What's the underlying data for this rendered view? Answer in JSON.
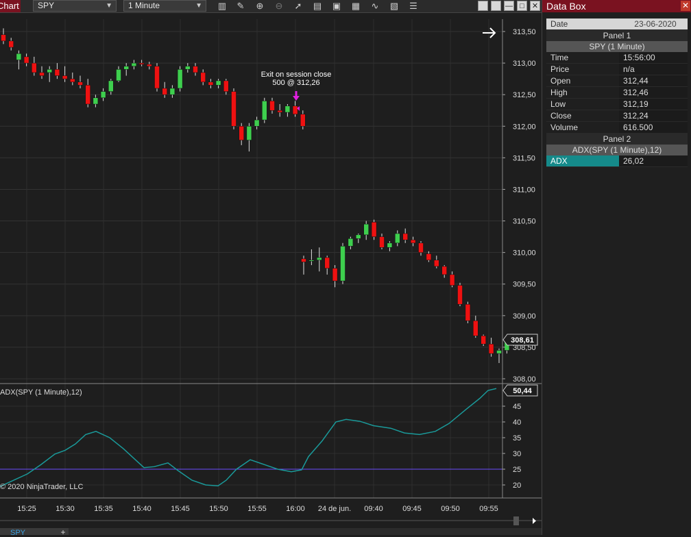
{
  "window": {
    "tab_title": "Chart"
  },
  "toolbar": {
    "instrument": "SPY",
    "interval": "1 Minute",
    "icons": [
      "chart-style-icon",
      "pencil-icon",
      "zoom-in-icon",
      "zoom-out-icon",
      "pointer-icon",
      "properties-icon",
      "templates-icon",
      "strategies-icon",
      "indicators-icon",
      "snapshot-icon",
      "data-box-icon"
    ]
  },
  "chart": {
    "price_axis_labels": [
      "313,50",
      "313,00",
      "312,50",
      "312,00",
      "311,50",
      "311,00",
      "310,50",
      "310,00",
      "309,50",
      "309,00",
      "308,50",
      "308,00"
    ],
    "time_axis_labels": [
      "15:25",
      "15:30",
      "15:35",
      "15:40",
      "15:45",
      "15:50",
      "15:55",
      "16:00",
      "24 de jun.",
      "09:40",
      "09:45",
      "09:50",
      "09:55"
    ],
    "last_price_badge": "308,61",
    "annotation_line1": "Exit on session close",
    "annotation_line2": "500 @ 312,26",
    "indicator_label": "ADX(SPY (1 Minute),12)",
    "indicator_badge": "50,44",
    "indicator_axis_labels": [
      "45",
      "40",
      "35",
      "30",
      "25",
      "20"
    ],
    "copyright": "© 2020 NinjaTrader, LLC",
    "colors": {
      "up": "#3ecf4e",
      "down": "#ee1111",
      "adx": "#1a9a9a",
      "level": "#6b4cff",
      "exit_marker": "#e020e0"
    }
  },
  "chart_data": {
    "type": "candlestick",
    "series": [
      {
        "name": "SPY (1 Minute)",
        "ohlc_session1": [
          [
            313.45,
            313.55,
            313.3,
            313.35
          ],
          [
            313.35,
            313.4,
            313.2,
            313.25
          ],
          [
            313.05,
            313.2,
            312.9,
            313.15
          ],
          [
            313.1,
            313.15,
            312.95,
            313.0
          ],
          [
            313.0,
            313.1,
            312.8,
            312.85
          ],
          [
            312.85,
            312.95,
            312.75,
            312.8
          ],
          [
            312.85,
            312.95,
            312.7,
            312.9
          ],
          [
            312.9,
            313.0,
            312.75,
            312.8
          ],
          [
            312.8,
            312.95,
            312.7,
            312.75
          ],
          [
            312.75,
            312.85,
            312.65,
            312.7
          ],
          [
            312.7,
            312.8,
            312.6,
            312.65
          ],
          [
            312.65,
            312.75,
            312.3,
            312.35
          ],
          [
            312.35,
            312.5,
            312.3,
            312.45
          ],
          [
            312.45,
            312.6,
            312.4,
            312.55
          ],
          [
            312.55,
            312.75,
            312.5,
            312.72
          ],
          [
            312.72,
            312.95,
            312.7,
            312.9
          ],
          [
            312.9,
            313.0,
            312.8,
            312.95
          ],
          [
            312.95,
            313.05,
            312.9,
            313.0
          ],
          [
            313.0,
            313.05,
            312.95,
            312.98
          ],
          [
            312.98,
            313.02,
            312.9,
            312.95
          ],
          [
            312.95,
            313.0,
            312.55,
            312.6
          ],
          [
            312.6,
            312.7,
            312.45,
            312.5
          ],
          [
            312.5,
            312.65,
            312.45,
            312.6
          ],
          [
            312.6,
            312.95,
            312.55,
            312.9
          ],
          [
            312.9,
            313.0,
            312.85,
            312.95
          ],
          [
            312.95,
            313.0,
            312.8,
            312.85
          ],
          [
            312.85,
            312.9,
            312.65,
            312.7
          ],
          [
            312.7,
            312.75,
            312.6,
            312.65
          ],
          [
            312.65,
            312.75,
            312.6,
            312.72
          ],
          [
            312.72,
            312.75,
            312.5,
            312.55
          ],
          [
            312.55,
            312.6,
            311.95,
            312.0
          ],
          [
            312.0,
            312.05,
            311.7,
            311.78
          ],
          [
            311.78,
            312.05,
            311.6,
            312.0
          ],
          [
            312.0,
            312.15,
            311.95,
            312.1
          ],
          [
            312.1,
            312.45,
            312.05,
            312.4
          ],
          [
            312.4,
            312.45,
            312.2,
            312.25
          ],
          [
            312.25,
            312.35,
            312.15,
            312.22
          ],
          [
            312.22,
            312.35,
            312.15,
            312.32
          ],
          [
            312.32,
            312.4,
            312.15,
            312.19
          ],
          [
            312.19,
            312.25,
            311.95,
            312.0
          ]
        ]
      },
      {
        "name": "ADX(SPY (1 Minute),12)"
      }
    ],
    "ylim": [
      308.0,
      313.65
    ]
  },
  "databox": {
    "title": "Data Box",
    "date_label": "Date",
    "date_value": "23-06-2020",
    "panel1": "Panel 1",
    "panel1_instrument": "SPY (1 Minute)",
    "rows": [
      {
        "k": "Time",
        "v": "15:56:00"
      },
      {
        "k": "Price",
        "v": "n/a"
      },
      {
        "k": "Open",
        "v": "312,44"
      },
      {
        "k": "High",
        "v": "312,46"
      },
      {
        "k": "Low",
        "v": "312,19"
      },
      {
        "k": "Close",
        "v": "312,24"
      },
      {
        "k": "Volume",
        "v": "616.500"
      }
    ],
    "panel2": "Panel 2",
    "panel2_indicator": "ADX(SPY (1 Minute),12)",
    "adx_label": "ADX",
    "adx_value": "26,02"
  },
  "bottom": {
    "sheet_tab": "SPY",
    "add_tab": "+"
  }
}
